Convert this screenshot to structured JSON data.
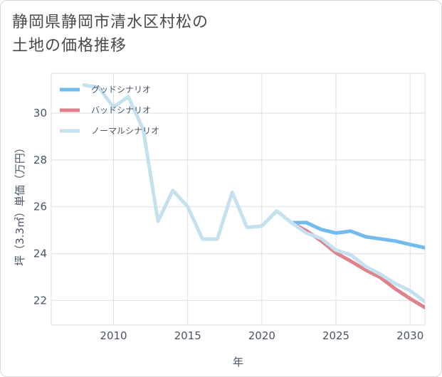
{
  "title_line1": "静岡県静岡市清水区村松の",
  "title_line2": "土地の価格推移",
  "chart_data": {
    "type": "line",
    "title": "静岡県静岡市清水区村松の土地の価格推移",
    "xlabel": "年",
    "ylabel": "坪（3.3㎡）単価（万円）",
    "xlim": [
      2005.8,
      2031.0
    ],
    "ylim": [
      20.95,
      31.7
    ],
    "xticks": [
      2010,
      2015,
      2020,
      2025,
      2030
    ],
    "yticks": [
      22,
      24,
      26,
      28,
      30
    ],
    "grid": true,
    "legend_position": "top-left",
    "series": [
      {
        "name": "グッドシナリオ",
        "color": "#72bbef",
        "x": [
          2022,
          2023,
          2024,
          2025,
          2026,
          2027,
          2028,
          2029,
          2030,
          2031
        ],
        "y": [
          25.32,
          25.33,
          25.03,
          24.88,
          24.96,
          24.72,
          24.63,
          24.54,
          24.39,
          24.25
        ]
      },
      {
        "name": "バッドシナリオ",
        "color": "#e0828b",
        "x": [
          2022,
          2023,
          2024,
          2025,
          2026,
          2027,
          2028,
          2029,
          2030,
          2031
        ],
        "y": [
          25.32,
          24.98,
          24.55,
          24.03,
          23.68,
          23.3,
          22.98,
          22.5,
          22.08,
          21.7
        ]
      },
      {
        "name": "ノーマルシナリオ",
        "color": "#c5e1ef",
        "x": [
          2008,
          2009,
          2010,
          2011,
          2012,
          2013,
          2014,
          2015,
          2016,
          2017,
          2018,
          2019,
          2020,
          2021,
          2022,
          2023,
          2024,
          2025,
          2026,
          2027,
          2028,
          2029,
          2030,
          2031
        ],
        "y": [
          31.2,
          31.1,
          30.25,
          30.7,
          29.3,
          25.38,
          26.7,
          26.0,
          24.62,
          24.62,
          26.62,
          25.12,
          25.18,
          25.82,
          25.32,
          24.88,
          24.65,
          24.15,
          23.95,
          23.45,
          23.12,
          22.72,
          22.42,
          21.95
        ]
      }
    ]
  }
}
